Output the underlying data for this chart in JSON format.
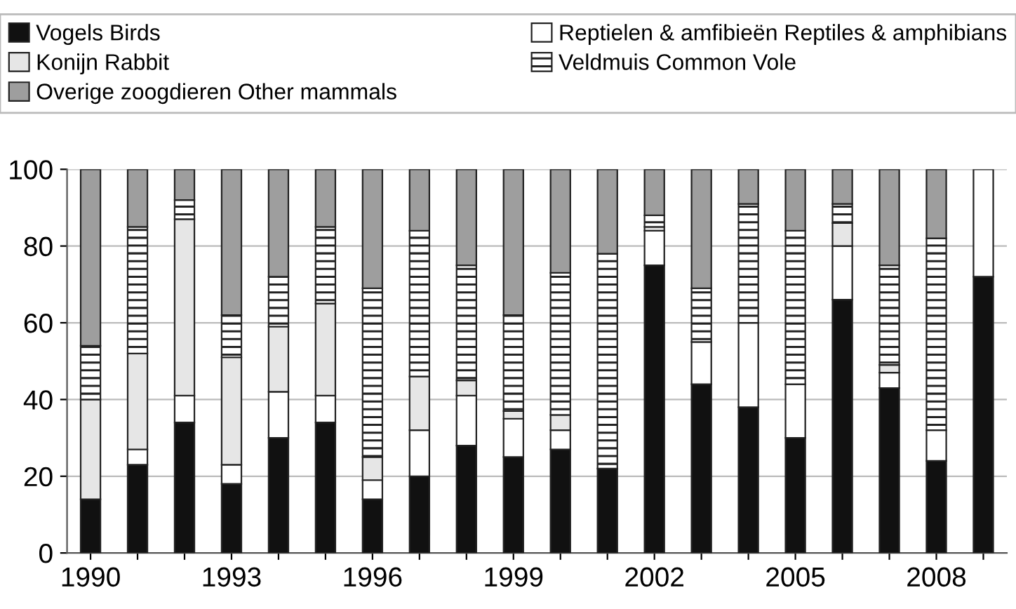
{
  "chart_data": {
    "type": "bar",
    "stacked": true,
    "categories": [
      "1990",
      null,
      null,
      "1993",
      null,
      null,
      "1996",
      null,
      null,
      "1999",
      null,
      null,
      "2002",
      null,
      null,
      "2005",
      null,
      null,
      "2008",
      null
    ],
    "series": [
      {
        "name": "Vogels Birds",
        "color": "#111111",
        "values": [
          14,
          23,
          34,
          18,
          30,
          34,
          14,
          20,
          28,
          25,
          27,
          22,
          75,
          44,
          38,
          30,
          66,
          43,
          24,
          72
        ]
      },
      {
        "name": "Reptielen & amfibieën Reptiles & amphibians",
        "color": "#ffffff",
        "values": [
          0,
          4,
          7,
          5,
          12,
          7,
          5,
          12,
          13,
          10,
          5,
          0,
          9,
          11,
          22,
          14,
          14,
          4,
          8,
          28
        ]
      },
      {
        "name": "Konijn Rabbit",
        "color": "#e6e6e6",
        "values": [
          26,
          25,
          46,
          28,
          17,
          24,
          6,
          14,
          4,
          2,
          4,
          0,
          1,
          0,
          0,
          0,
          6,
          2,
          0,
          0
        ]
      },
      {
        "name": "Veldmuis Common Vole",
        "color": "#222222",
        "values": [
          14,
          33,
          5,
          11,
          13,
          20,
          44,
          38,
          30,
          25,
          37,
          56,
          3,
          14,
          31,
          40,
          5,
          26,
          50,
          0
        ]
      },
      {
        "name": "Overige zoogdieren Other mammals",
        "color": "#9e9e9e",
        "values": [
          46,
          15,
          8,
          38,
          28,
          15,
          31,
          16,
          25,
          38,
          27,
          22,
          12,
          31,
          9,
          16,
          9,
          25,
          18,
          0
        ]
      }
    ],
    "ylim": [
      0,
      100
    ],
    "yticks": [
      0,
      20,
      40,
      60,
      80,
      100
    ],
    "grid": "y",
    "legend": "top"
  }
}
